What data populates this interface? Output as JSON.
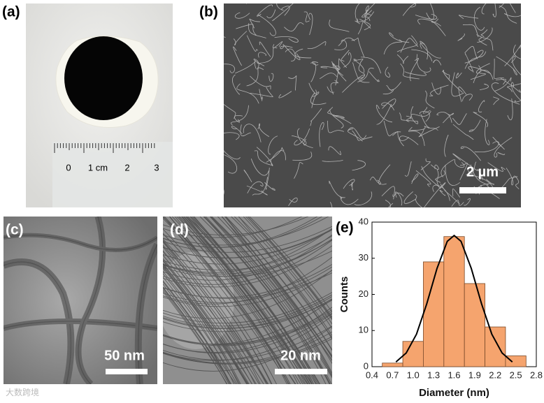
{
  "panels": [
    {
      "label": "(a)"
    },
    {
      "label": "(b)",
      "scale_bar": "2 µm"
    },
    {
      "label": "(c)",
      "scale_bar": "50 nm"
    },
    {
      "label": "(d)",
      "scale_bar": "20 nm"
    }
  ],
  "ruler": [
    "0",
    "1 cm",
    "2",
    "3"
  ],
  "watermark": "大数跨境",
  "chart_data": {
    "type": "histogram",
    "label": "(e)",
    "x_label": "Diameter (nm)",
    "y_label": "Counts",
    "bins": [
      0.55,
      0.85,
      1.15,
      1.45,
      1.75,
      2.05,
      2.35,
      2.65
    ],
    "counts": [
      1,
      7,
      29,
      36,
      23,
      11,
      3
    ],
    "color": "#f5a46e",
    "fit": {
      "x": [
        0.75,
        0.9,
        1.05,
        1.2,
        1.35,
        1.5,
        1.6,
        1.7,
        1.85,
        2.0,
        2.15,
        2.3,
        2.45
      ],
      "y": [
        1.3,
        3.8,
        9.0,
        17.4,
        27.2,
        34.7,
        36.3,
        34.7,
        27.2,
        17.4,
        9.0,
        3.8,
        1.3
      ]
    },
    "xlim": [
      0.4,
      2.8
    ],
    "xticks": [
      0.4,
      0.7,
      {
        "value": 1,
        "label": "1.0"
      },
      1.3,
      1.6,
      1.9,
      2.2,
      2.5,
      2.8
    ],
    "ylim": [
      0,
      40
    ],
    "yticks": [
      0,
      10,
      20,
      30,
      40
    ]
  }
}
